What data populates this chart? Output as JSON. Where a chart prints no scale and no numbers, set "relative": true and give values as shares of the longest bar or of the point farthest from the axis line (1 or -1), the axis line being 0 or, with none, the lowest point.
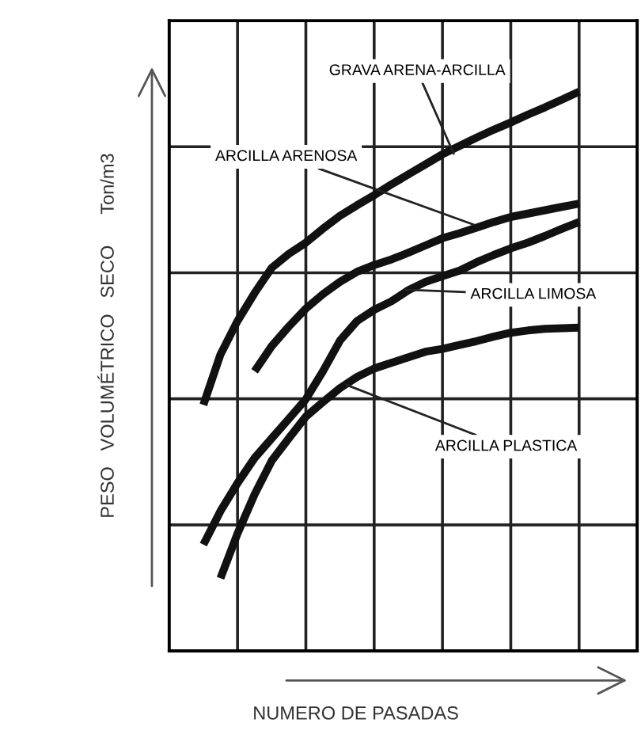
{
  "chart_data": {
    "type": "line",
    "relative": true,
    "xlabel": "NUMERO DE PASADAS",
    "ylabel": "PESO   VOLUMÉTRICO   SECO      Ton/m3",
    "categories": [
      null,
      null,
      null,
      null,
      null,
      null,
      null,
      null,
      null,
      null,
      null,
      null,
      null,
      null,
      null,
      null,
      null,
      null,
      null,
      null,
      null,
      null,
      null
    ],
    "grid": true,
    "line_style": "solid",
    "marker": "none",
    "series": [
      {
        "color": "#111111",
        "values": [
          0.44,
          0.53,
          0.59,
          0.64,
          0.685,
          0.71,
          0.73,
          0.755,
          0.778,
          0.797,
          0.815,
          0.834,
          0.852,
          0.87,
          0.888,
          0.903,
          0.918,
          0.932,
          0.945,
          0.959,
          0.972,
          0.986,
          1.0
        ]
      },
      {
        "color": "#111111",
        "values": [
          null,
          null,
          null,
          0.5,
          0.545,
          0.58,
          0.612,
          0.638,
          0.66,
          0.678,
          0.69,
          0.7,
          0.712,
          0.725,
          0.738,
          0.747,
          0.757,
          0.767,
          0.776,
          0.782,
          0.788,
          0.794,
          0.8
        ]
      },
      {
        "color": "#111111",
        "values": [
          0.19,
          0.25,
          0.3,
          0.345,
          0.38,
          0.415,
          0.45,
          0.5,
          0.555,
          0.59,
          0.61,
          0.625,
          0.645,
          0.66,
          0.67,
          0.68,
          0.695,
          0.708,
          0.72,
          0.73,
          0.742,
          0.755,
          0.767
        ]
      },
      {
        "color": "#111111",
        "values": [
          null,
          0.13,
          0.21,
          0.28,
          0.34,
          0.38,
          0.419,
          0.445,
          0.47,
          0.49,
          0.505,
          0.515,
          0.525,
          0.535,
          0.54,
          0.547,
          0.554,
          0.562,
          0.569,
          0.573,
          0.576,
          0.577,
          0.578
        ]
      }
    ],
    "annotations": [
      "GRAVA ARENA-ARCILLA",
      "ARCILLA ARENOSA",
      "ARCILLA LIMOSA",
      "ARCILLA PLASTICA"
    ]
  }
}
